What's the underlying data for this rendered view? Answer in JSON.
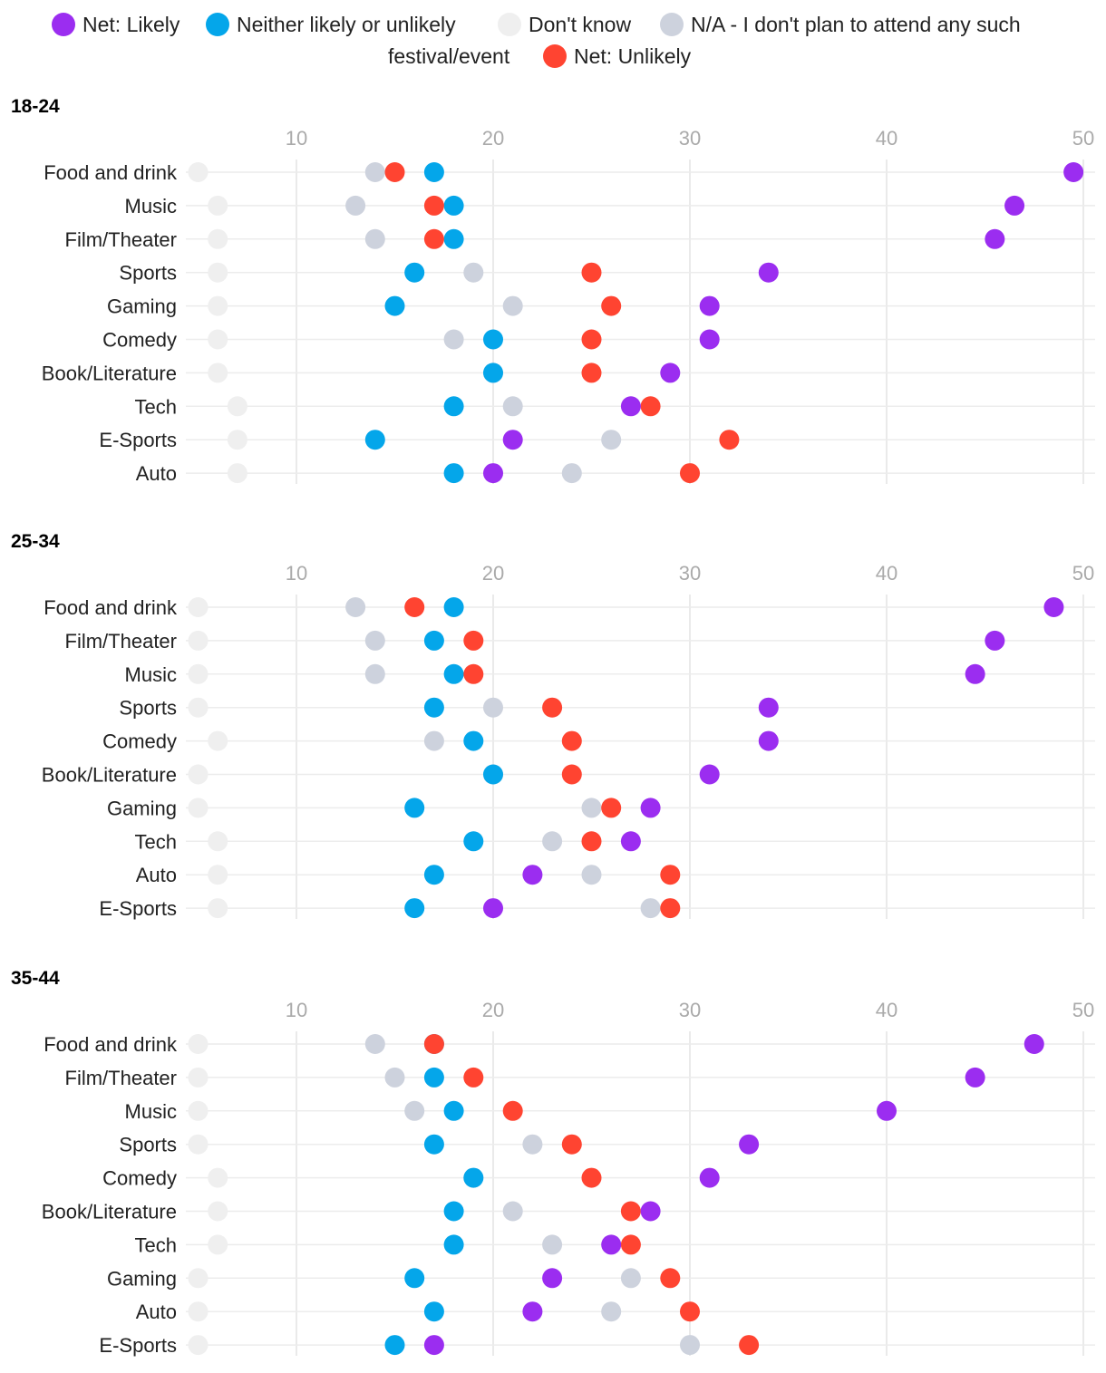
{
  "chart_data": {
    "type": "scatter",
    "xlim": [
      5,
      50
    ],
    "x_ticks": [
      10,
      20,
      30,
      40,
      50
    ],
    "grid": true,
    "legend_position": "top-center",
    "legend": [
      {
        "key": "likely",
        "label": "Net: Likely",
        "color": "#9B2DF0"
      },
      {
        "key": "neither",
        "label": "Neither likely or unlikely",
        "color": "#04A6EA"
      },
      {
        "key": "dontknow",
        "label": "Don't know",
        "color": "#EFEFEF"
      },
      {
        "key": "na",
        "label": "N/A - I don't plan to attend any such",
        "label_cont": "festival/event",
        "color": "#CDD2DD"
      },
      {
        "key": "unlikely",
        "label": "Net: Unlikely",
        "color": "#FF4431"
      }
    ],
    "panels": [
      {
        "title": "18-24",
        "rows": [
          {
            "category": "Food and drink",
            "likely": 49.5,
            "neither": 17,
            "dontknow": 5,
            "na": 14,
            "unlikely": 15
          },
          {
            "category": "Music",
            "likely": 46.5,
            "neither": 18,
            "dontknow": 6,
            "na": 13,
            "unlikely": 17
          },
          {
            "category": "Film/Theater",
            "likely": 45.5,
            "neither": 18,
            "dontknow": 6,
            "na": 14,
            "unlikely": 17
          },
          {
            "category": "Sports",
            "likely": 34,
            "neither": 16,
            "dontknow": 6,
            "na": 19,
            "unlikely": 25
          },
          {
            "category": "Gaming",
            "likely": 31,
            "neither": 15,
            "dontknow": 6,
            "na": 21,
            "unlikely": 26
          },
          {
            "category": "Comedy",
            "likely": 31,
            "neither": 20,
            "dontknow": 6,
            "na": 18,
            "unlikely": 25
          },
          {
            "category": "Book/Literature",
            "likely": 29,
            "neither": 20,
            "dontknow": 6,
            "na": 20,
            "unlikely": 25
          },
          {
            "category": "Tech",
            "likely": 27,
            "neither": 18,
            "dontknow": 7,
            "na": 21,
            "unlikely": 28
          },
          {
            "category": "E-Sports",
            "likely": 21,
            "neither": 14,
            "dontknow": 7,
            "na": 26,
            "unlikely": 32
          },
          {
            "category": "Auto",
            "likely": 20,
            "neither": 18,
            "dontknow": 7,
            "na": 24,
            "unlikely": 30
          }
        ]
      },
      {
        "title": "25-34",
        "rows": [
          {
            "category": "Food and drink",
            "likely": 48.5,
            "neither": 18,
            "dontknow": 5,
            "na": 13,
            "unlikely": 16
          },
          {
            "category": "Film/Theater",
            "likely": 45.5,
            "neither": 17,
            "dontknow": 5,
            "na": 14,
            "unlikely": 19
          },
          {
            "category": "Music",
            "likely": 44.5,
            "neither": 18,
            "dontknow": 5,
            "na": 14,
            "unlikely": 19
          },
          {
            "category": "Sports",
            "likely": 34,
            "neither": 17,
            "dontknow": 5,
            "na": 20,
            "unlikely": 23
          },
          {
            "category": "Comedy",
            "likely": 34,
            "neither": 19,
            "dontknow": 6,
            "na": 17,
            "unlikely": 24
          },
          {
            "category": "Book/Literature",
            "likely": 31,
            "neither": 20,
            "dontknow": 5,
            "na": 20,
            "unlikely": 24
          },
          {
            "category": "Gaming",
            "likely": 28,
            "neither": 16,
            "dontknow": 5,
            "na": 25,
            "unlikely": 26
          },
          {
            "category": "Tech",
            "likely": 27,
            "neither": 19,
            "dontknow": 6,
            "na": 23,
            "unlikely": 25
          },
          {
            "category": "Auto",
            "likely": 22,
            "neither": 17,
            "dontknow": 6,
            "na": 25,
            "unlikely": 29
          },
          {
            "category": "E-Sports",
            "likely": 20,
            "neither": 16,
            "dontknow": 6,
            "na": 28,
            "unlikely": 29
          }
        ]
      },
      {
        "title": "35-44",
        "rows": [
          {
            "category": "Food and drink",
            "likely": 47.5,
            "neither": 17,
            "dontknow": 5,
            "na": 14,
            "unlikely": 17
          },
          {
            "category": "Film/Theater",
            "likely": 44.5,
            "neither": 17,
            "dontknow": 5,
            "na": 15,
            "unlikely": 19
          },
          {
            "category": "Music",
            "likely": 40,
            "neither": 18,
            "dontknow": 5,
            "na": 16,
            "unlikely": 21
          },
          {
            "category": "Sports",
            "likely": 33,
            "neither": 17,
            "dontknow": 5,
            "na": 22,
            "unlikely": 24
          },
          {
            "category": "Comedy",
            "likely": 31,
            "neither": 19,
            "dontknow": 6,
            "na": 19,
            "unlikely": 25
          },
          {
            "category": "Book/Literature",
            "likely": 28,
            "neither": 18,
            "dontknow": 6,
            "na": 21,
            "unlikely": 27
          },
          {
            "category": "Tech",
            "likely": 26,
            "neither": 18,
            "dontknow": 6,
            "na": 23,
            "unlikely": 27
          },
          {
            "category": "Gaming",
            "likely": 23,
            "neither": 16,
            "dontknow": 5,
            "na": 27,
            "unlikely": 29
          },
          {
            "category": "Auto",
            "likely": 22,
            "neither": 17,
            "dontknow": 5,
            "na": 26,
            "unlikely": 30
          },
          {
            "category": "E-Sports",
            "likely": 17,
            "neither": 15,
            "dontknow": 5,
            "na": 30,
            "unlikely": 33
          }
        ]
      }
    ]
  }
}
